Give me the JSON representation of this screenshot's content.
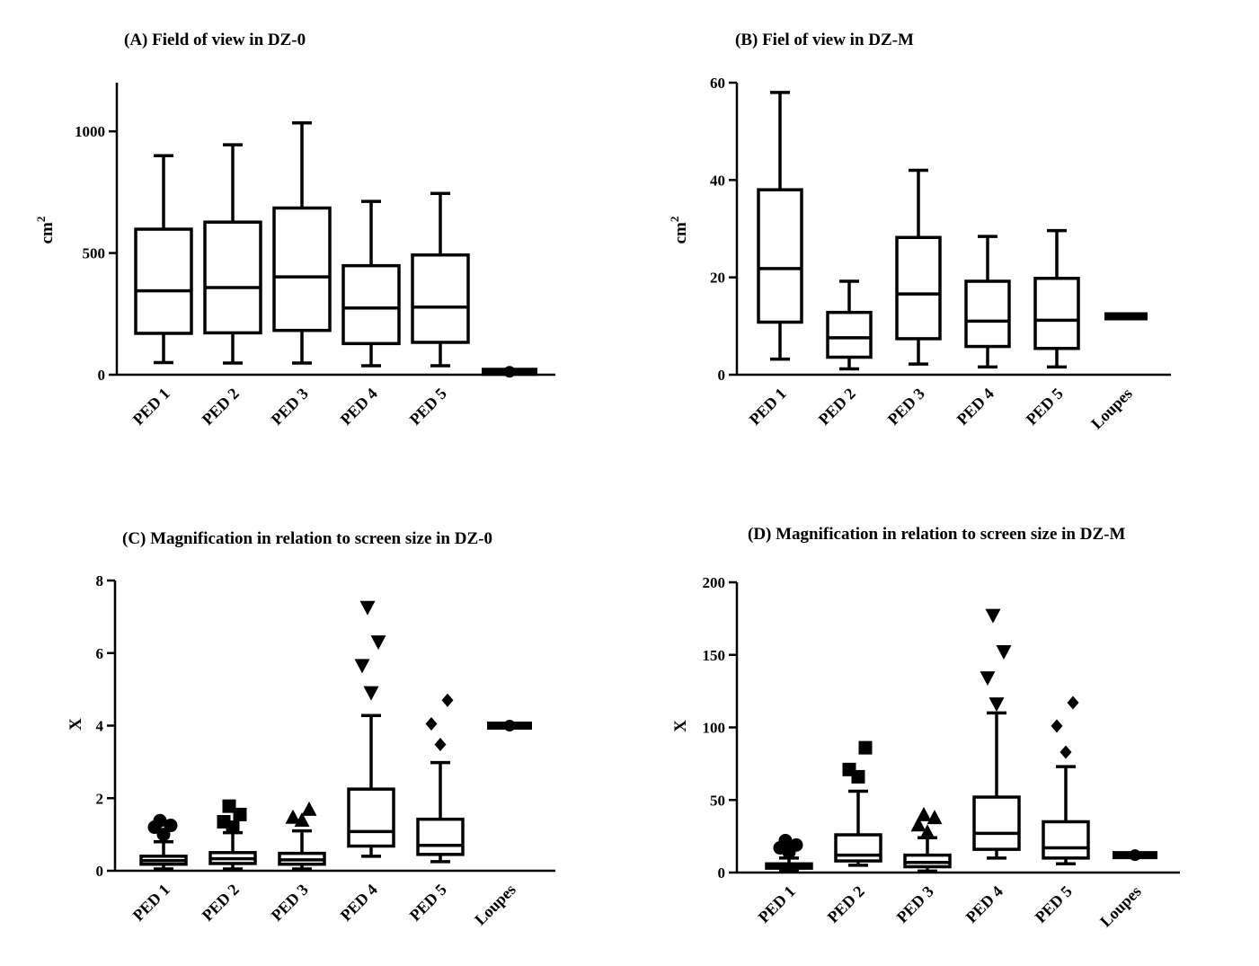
{
  "chart_data": [
    {
      "id": "A",
      "type": "box",
      "title": "(A) Field of view in DZ-0",
      "ylabel": "cm",
      "ylabel_sup": "2",
      "ylim": [
        0,
        1200
      ],
      "yticks": [
        0,
        500,
        1000
      ],
      "categories": [
        "PED 1",
        "PED 2",
        "PED 3",
        "PED 4",
        "PED 5",
        ""
      ],
      "boxes": [
        {
          "min": 50,
          "q1": 170,
          "median": 345,
          "q3": 598,
          "max": 900,
          "outliers": []
        },
        {
          "min": 48,
          "q1": 172,
          "median": 358,
          "q3": 627,
          "max": 945,
          "outliers": []
        },
        {
          "min": 48,
          "q1": 182,
          "median": 402,
          "q3": 685,
          "max": 1035,
          "outliers": []
        },
        {
          "min": 37,
          "q1": 128,
          "median": 274,
          "q3": 448,
          "max": 712,
          "outliers": []
        },
        {
          "min": 37,
          "q1": 133,
          "median": 278,
          "q3": 492,
          "max": 745,
          "outliers": []
        },
        {
          "min": 12,
          "q1": 12,
          "median": 12,
          "q3": 12,
          "max": 12,
          "outliers": []
        }
      ],
      "outlier_marker": "none"
    },
    {
      "id": "B",
      "type": "box",
      "title": "(B) Fiel of view in DZ-M",
      "ylabel": "cm",
      "ylabel_sup": "2",
      "ylim": [
        0,
        60
      ],
      "yticks": [
        0,
        20,
        40,
        60
      ],
      "categories": [
        "PED 1",
        "PED 2",
        "PED 3",
        "PED 4",
        "PED 5",
        "Loupes"
      ],
      "boxes": [
        {
          "min": 3.2,
          "q1": 10.8,
          "median": 21.8,
          "q3": 38,
          "max": 58,
          "outliers": []
        },
        {
          "min": 1.2,
          "q1": 3.6,
          "median": 7.6,
          "q3": 12.8,
          "max": 19.2,
          "outliers": []
        },
        {
          "min": 2.2,
          "q1": 7.4,
          "median": 16.6,
          "q3": 28.2,
          "max": 42,
          "outliers": []
        },
        {
          "min": 1.6,
          "q1": 5.8,
          "median": 11,
          "q3": 19.2,
          "max": 28.4,
          "outliers": []
        },
        {
          "min": 1.6,
          "q1": 5.4,
          "median": 11.2,
          "q3": 19.8,
          "max": 29.6,
          "outliers": []
        },
        {
          "min": 12,
          "q1": 12,
          "median": 12,
          "q3": 12,
          "max": 12,
          "outliers": []
        }
      ],
      "outlier_marker": "none"
    },
    {
      "id": "C",
      "type": "box",
      "title": "(C) Magnification in relation to screen size in DZ-0",
      "ylabel": "X",
      "ylabel_sup": "",
      "ylim": [
        0,
        8
      ],
      "yticks": [
        0,
        2,
        4,
        6,
        8
      ],
      "categories": [
        "PED 1",
        "PED 2",
        "PED 3",
        "PED 4",
        "PED 5",
        "Loupes"
      ],
      "boxes": [
        {
          "min": 0.05,
          "q1": 0.18,
          "median": 0.28,
          "q3": 0.4,
          "max": 0.8,
          "outliers": [
            1.0,
            1.2,
            1.25,
            1.38
          ],
          "marker": "circle"
        },
        {
          "min": 0.05,
          "q1": 0.2,
          "median": 0.33,
          "q3": 0.5,
          "max": 1.05,
          "outliers": [
            1.2,
            1.35,
            1.55,
            1.78
          ],
          "marker": "square"
        },
        {
          "min": 0.05,
          "q1": 0.18,
          "median": 0.3,
          "q3": 0.48,
          "max": 1.1,
          "outliers": [
            1.4,
            1.48,
            1.7
          ],
          "marker": "triangle-up"
        },
        {
          "min": 0.4,
          "q1": 0.68,
          "median": 1.08,
          "q3": 2.25,
          "max": 4.28,
          "outliers": [
            4.9,
            5.65,
            6.3,
            7.25
          ],
          "marker": "triangle-down"
        },
        {
          "min": 0.25,
          "q1": 0.45,
          "median": 0.7,
          "q3": 1.42,
          "max": 2.98,
          "outliers": [
            3.48,
            4.05,
            4.7
          ],
          "marker": "diamond"
        },
        {
          "min": 4.0,
          "q1": 4.0,
          "median": 4.0,
          "q3": 4.0,
          "max": 4.0,
          "outliers": [],
          "marker": "circle"
        }
      ],
      "outlier_marker": "varies"
    },
    {
      "id": "D",
      "type": "box",
      "title": "(D) Magnification in relation to screen size in DZ-M",
      "ylabel": "X",
      "ylabel_sup": "",
      "ylim": [
        0,
        200
      ],
      "yticks": [
        0,
        50,
        100,
        150,
        200
      ],
      "categories": [
        "PED 1",
        "PED 2",
        "PED 3",
        "PED 4",
        "PED 5",
        "Loupes"
      ],
      "boxes": [
        {
          "min": 1,
          "q1": 3,
          "median": 4.5,
          "q3": 6,
          "max": 10,
          "outliers": [
            14,
            17,
            19,
            22
          ],
          "marker": "circle"
        },
        {
          "min": 5,
          "q1": 8,
          "median": 12,
          "q3": 26,
          "max": 56,
          "outliers": [
            66,
            71,
            86
          ],
          "marker": "square"
        },
        {
          "min": 1,
          "q1": 4,
          "median": 7,
          "q3": 12,
          "max": 24,
          "outliers": [
            28,
            33,
            38,
            40
          ],
          "marker": "triangle-up"
        },
        {
          "min": 10,
          "q1": 16,
          "median": 27,
          "q3": 52,
          "max": 110,
          "outliers": [
            116,
            134,
            152,
            177
          ],
          "marker": "triangle-down"
        },
        {
          "min": 6,
          "q1": 10,
          "median": 17,
          "q3": 35,
          "max": 73,
          "outliers": [
            83,
            101,
            117
          ],
          "marker": "diamond"
        },
        {
          "min": 12,
          "q1": 12,
          "median": 12,
          "q3": 12,
          "max": 12,
          "outliers": [],
          "marker": "circle"
        }
      ],
      "outlier_marker": "varies"
    }
  ]
}
